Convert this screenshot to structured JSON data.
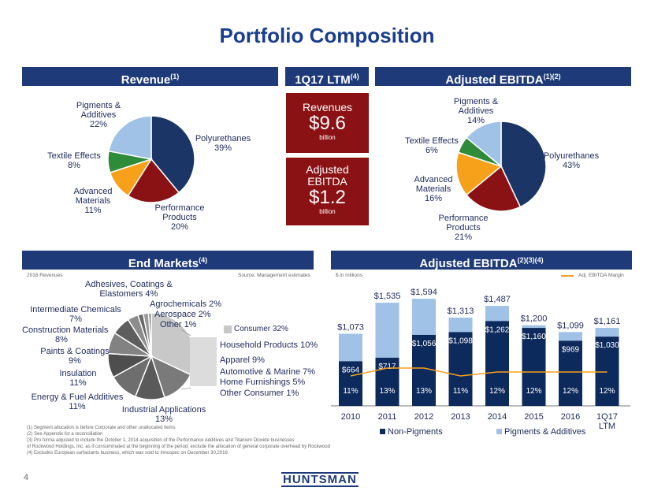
{
  "title": "Portfolio Composition",
  "headers": {
    "revenue": "Revenue",
    "revenue_sup": "(1)",
    "ltm": "1Q17 LTM",
    "ltm_sup": "(4)",
    "ebitda": "Adjusted EBITDA",
    "ebitda_sup": "(1)(2)",
    "end_markets": "End Markets",
    "end_markets_sup": "(4)",
    "ebitda_hist": "Adjusted EBITDA",
    "ebitda_hist_sup": "(2)(3)(4)"
  },
  "ltm_box": {
    "revenues_label": "Revenues",
    "revenues_value": "$9.6",
    "revenues_unit": "billion",
    "ebitda_label_1": "Adjusted",
    "ebitda_label_2": "EBITDA",
    "ebitda_value": "$1.2",
    "ebitda_unit": "billion"
  },
  "end_markets_notes": {
    "left": "2016 Revenues",
    "right": "Source: Management estimates"
  },
  "ebitda_notes": {
    "left": "$ in millions",
    "legend_line": "Adj. EBITDA Margin"
  },
  "consumer": {
    "header": "Consumer 32%",
    "items": [
      "Household Products 10%",
      "Apparel 9%",
      "Automotive & Marine 7%",
      "Home Furnishings 5%",
      "Other Consumer 1%"
    ]
  },
  "footnotes": [
    "(1) Segment allocation is before Corporate and other unallocated items",
    "(2) See Appendix  for a reconciliation",
    "(3) Pro forma adjusted to include the October 1, 2014 acquisition of the Performance Additives and Titanium Dioxide businesses",
    "     of Rockwood Holdings, Inc. as if consummated  at the beginning of the period; exclude the allocation of general corporate overhead  by Rockwood",
    "(4) Excludes European surfactants business, which was sold to Innospec  on December 30,2016"
  ],
  "page_number": "4",
  "logo": "HUNTSMAN",
  "colors": {
    "navy": "#1b3566",
    "red": "#8b1214",
    "orange": "#f7a01a",
    "green": "#2e8b3a",
    "lightblue": "#9fc2e6"
  },
  "chart_data": [
    {
      "type": "pie",
      "title": "Revenue",
      "slices": [
        {
          "label_1": "Polyurethanes",
          "label_2": "39%",
          "value": 39,
          "color": "#1b3566"
        },
        {
          "label_1": "Performance",
          "label_2": "Products",
          "label_3": "20%",
          "value": 20,
          "color": "#8b1214"
        },
        {
          "label_1": "Advanced",
          "label_2": "Materials",
          "label_3": "11%",
          "value": 11,
          "color": "#f7a01a"
        },
        {
          "label_1": "Textile Effects",
          "label_2": "8%",
          "value": 8,
          "color": "#2e8b3a"
        },
        {
          "label_1": "Pigments &",
          "label_2": "Additives",
          "label_3": "22%",
          "value": 22,
          "color": "#9fc2e6"
        }
      ]
    },
    {
      "type": "pie",
      "title": "Adjusted EBITDA",
      "slices": [
        {
          "label_1": "Polyurethanes",
          "label_2": "43%",
          "value": 43,
          "color": "#1b3566"
        },
        {
          "label_1": "Performance",
          "label_2": "Products",
          "label_3": "21%",
          "value": 21,
          "color": "#8b1214"
        },
        {
          "label_1": "Advanced",
          "label_2": "Materials",
          "label_3": "16%",
          "value": 16,
          "color": "#f7a01a"
        },
        {
          "label_1": "Textile Effects",
          "label_2": "6%",
          "value": 6,
          "color": "#2e8b3a"
        },
        {
          "label_1": "Pigments &",
          "label_2": "Additives",
          "label_3": "14%",
          "value": 14,
          "color": "#9fc2e6"
        }
      ]
    },
    {
      "type": "pie",
      "title": "End Markets",
      "slices": [
        {
          "label": "Consumer",
          "pct": "32%",
          "value": 32,
          "color": "#c8c8c8"
        },
        {
          "label": "Industrial Applications",
          "pct": "13%",
          "value": 13,
          "color": "#7a7a7a"
        },
        {
          "label": "Energy & Fuel Additives",
          "pct": "11%",
          "value": 11,
          "color": "#5a5a5a"
        },
        {
          "label": "Insulation",
          "pct": "11%",
          "value": 11,
          "color": "#6e6e6e"
        },
        {
          "label": "Paints & Coatings",
          "pct": "9%",
          "value": 9,
          "color": "#4e4e4e"
        },
        {
          "label": "Construction Materials",
          "pct": "8%",
          "value": 8,
          "color": "#828282"
        },
        {
          "label": "Intermediate Chemicals",
          "pct": "7%",
          "value": 7,
          "color": "#5e5e5e"
        },
        {
          "label": "Adhesives, Coatings & Elastomers",
          "pct": "4%",
          "value": 4,
          "color": "#8c8c8c"
        },
        {
          "label": "Agrochemicals",
          "pct": "2%",
          "value": 2,
          "color": "#6a6a6a"
        },
        {
          "label": "Aerospace",
          "pct": "2%",
          "value": 2,
          "color": "#9a9a9a"
        },
        {
          "label": "Other",
          "pct": "1%",
          "value": 1,
          "color": "#767676"
        }
      ],
      "labels_text": {
        "adhesives_1": "Adhesives, Coatings &",
        "adhesives_2": "Elastomers 4%",
        "agro": "Agrochemicals 2%",
        "aero": "Aerospace 2%",
        "other": "Other 1%",
        "intermediate_1": "Intermediate Chemicals",
        "intermediate_2": "7%",
        "construction_1": "Construction Materials",
        "construction_2": "8%",
        "paints_1": "Paints & Coatings",
        "paints_2": "9%",
        "insulation_1": "Insulation",
        "insulation_2": "11%",
        "energy_1": "Energy & Fuel Additives",
        "energy_2": "11%",
        "industrial_1": "Industrial Applications",
        "industrial_2": "13%"
      }
    },
    {
      "type": "bar",
      "title": "Adjusted EBITDA",
      "categories": [
        "2010",
        "2011",
        "2012",
        "2013",
        "2014",
        "2015",
        "2016",
        "1Q17"
      ],
      "category_sub": [
        "",
        "",
        "",
        "",
        "",
        "",
        "",
        "LTM"
      ],
      "totals": [
        1073,
        1535,
        1594,
        1313,
        1487,
        1200,
        1099,
        1161
      ],
      "total_labels": [
        "$1,073",
        "$1,535",
        "$1,594",
        "$1,313",
        "$1,487",
        "$1,200",
        "$1,099",
        "$1,161"
      ],
      "series": [
        {
          "name": "Non-Pigments",
          "color": "#0d2a5c",
          "values": [
            664,
            717,
            1056,
            1098,
            1262,
            1160,
            969,
            1030
          ],
          "labels": [
            "$664",
            "$717",
            "$1,056",
            "$1,098",
            "$1,262",
            "$1,160",
            "$969",
            "$1,030"
          ]
        },
        {
          "name": "Pigments & Additives",
          "color": "#9fc2e6",
          "values": [
            409,
            818,
            538,
            215,
            225,
            40,
            130,
            131
          ]
        }
      ],
      "margin": {
        "name": "Adj. EBITDA Margin",
        "color": "#f7a01a",
        "values": [
          11,
          13,
          13,
          11,
          12,
          12,
          12,
          12
        ],
        "labels": [
          "11%",
          "13%",
          "13%",
          "11%",
          "12%",
          "12%",
          "12%",
          "12%"
        ]
      },
      "ylim": [
        0,
        1700
      ]
    }
  ]
}
